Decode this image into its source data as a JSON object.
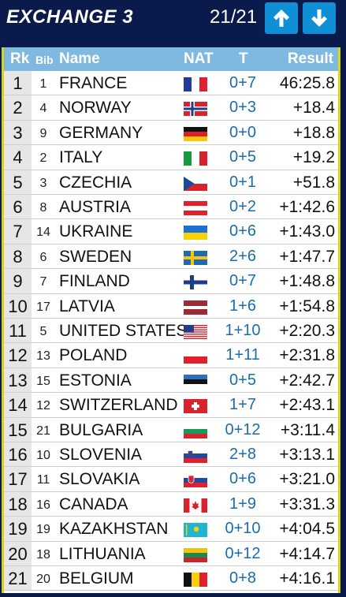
{
  "header": {
    "title": "EXCHANGE 3",
    "pager": "21/21",
    "up_icon": "arrow-up-icon",
    "down_icon": "arrow-down-icon"
  },
  "columns": {
    "rk": "Rk",
    "bib": "Bib",
    "name": "Name",
    "nat": "NAT",
    "t": "T",
    "result": "Result"
  },
  "rows": [
    {
      "rk": "1",
      "bib": "1",
      "name": "FRANCE",
      "flag": "france",
      "t": "0+7",
      "result": "46:25.8"
    },
    {
      "rk": "2",
      "bib": "4",
      "name": "NORWAY",
      "flag": "norway",
      "t": "0+3",
      "result": "+18.4"
    },
    {
      "rk": "3",
      "bib": "9",
      "name": "GERMANY",
      "flag": "germany",
      "t": "0+0",
      "result": "+18.8"
    },
    {
      "rk": "4",
      "bib": "2",
      "name": "ITALY",
      "flag": "italy",
      "t": "0+5",
      "result": "+19.2"
    },
    {
      "rk": "5",
      "bib": "3",
      "name": "CZECHIA",
      "flag": "czechia",
      "t": "0+1",
      "result": "+51.8"
    },
    {
      "rk": "6",
      "bib": "8",
      "name": "AUSTRIA",
      "flag": "austria",
      "t": "0+2",
      "result": "+1:42.6"
    },
    {
      "rk": "7",
      "bib": "14",
      "name": "UKRAINE",
      "flag": "ukraine",
      "t": "0+6",
      "result": "+1:43.0"
    },
    {
      "rk": "8",
      "bib": "6",
      "name": "SWEDEN",
      "flag": "sweden",
      "t": "2+6",
      "result": "+1:47.7"
    },
    {
      "rk": "9",
      "bib": "7",
      "name": "FINLAND",
      "flag": "finland",
      "t": "0+7",
      "result": "+1:48.8"
    },
    {
      "rk": "10",
      "bib": "17",
      "name": "LATVIA",
      "flag": "latvia",
      "t": "1+6",
      "result": "+1:54.8"
    },
    {
      "rk": "11",
      "bib": "5",
      "name": "UNITED STATES",
      "flag": "usa",
      "t": "1+10",
      "result": "+2:20.3"
    },
    {
      "rk": "12",
      "bib": "13",
      "name": "POLAND",
      "flag": "poland",
      "t": "1+11",
      "result": "+2:31.8"
    },
    {
      "rk": "13",
      "bib": "15",
      "name": "ESTONIA",
      "flag": "estonia",
      "t": "0+5",
      "result": "+2:42.7"
    },
    {
      "rk": "14",
      "bib": "12",
      "name": "SWITZERLAND",
      "flag": "switzerland",
      "t": "1+7",
      "result": "+2:43.1"
    },
    {
      "rk": "15",
      "bib": "21",
      "name": "BULGARIA",
      "flag": "bulgaria",
      "t": "0+12",
      "result": "+3:11.4"
    },
    {
      "rk": "16",
      "bib": "10",
      "name": "SLOVENIA",
      "flag": "slovenia",
      "t": "2+8",
      "result": "+3:13.1"
    },
    {
      "rk": "17",
      "bib": "11",
      "name": "SLOVAKIA",
      "flag": "slovakia",
      "t": "0+6",
      "result": "+3:21.0"
    },
    {
      "rk": "18",
      "bib": "16",
      "name": "CANADA",
      "flag": "canada",
      "t": "1+9",
      "result": "+3:31.3"
    },
    {
      "rk": "19",
      "bib": "19",
      "name": "KAZAKHSTAN",
      "flag": "kazakhstan",
      "t": "0+10",
      "result": "+4:04.5"
    },
    {
      "rk": "20",
      "bib": "18",
      "name": "LITHUANIA",
      "flag": "lithuania",
      "t": "0+12",
      "result": "+4:14.7"
    },
    {
      "rk": "21",
      "bib": "20",
      "name": "BELGIUM",
      "flag": "belgium",
      "t": "0+8",
      "result": "+4:16.1"
    }
  ],
  "colors": {
    "background": "#0a1a4a",
    "accent": "#0e8fd6",
    "header_row": "#7fb9e0",
    "border": "#d9d21a",
    "shooting": "#1a6db0"
  }
}
